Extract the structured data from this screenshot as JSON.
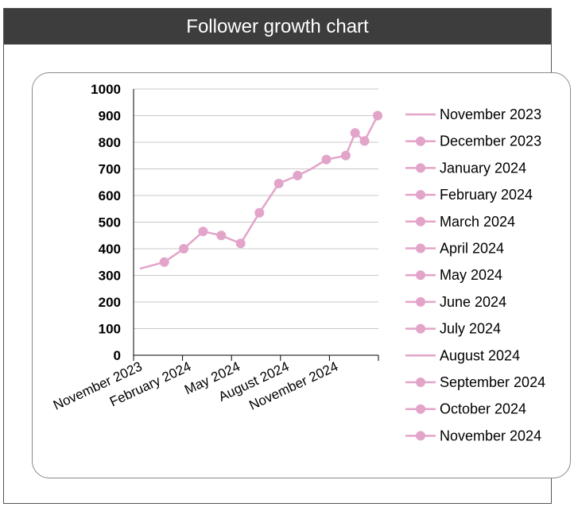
{
  "title": "Follower growth chart",
  "colors": {
    "series": "#e3a4ca",
    "header": "#3d3d3d",
    "grid": "#c8c8c8"
  },
  "chart_data": {
    "type": "line",
    "title": "Follower growth chart",
    "x": [
      "2023-11-01",
      "2023-12-01",
      "2024-01-01",
      "2024-02-01",
      "2024-03-01",
      "2024-04-01",
      "2024-05-01",
      "2024-06-01",
      "2024-07-01",
      "2024-08-01",
      "2024-09-01",
      "2024-10-01",
      "2024-11-01"
    ],
    "series": [
      {
        "points": [
          {
            "x": "2023-11-01",
            "y": 325
          },
          {
            "x": "2023-12-10",
            "y": 350
          },
          {
            "x": "2024-01-10",
            "y": 400
          },
          {
            "x": "2024-02-10",
            "y": 465
          },
          {
            "x": "2024-03-10",
            "y": 450
          },
          {
            "x": "2024-04-10",
            "y": 420
          },
          {
            "x": "2024-05-10",
            "y": 535
          },
          {
            "x": "2024-06-10",
            "y": 645
          },
          {
            "x": "2024-07-10",
            "y": 675
          },
          {
            "x": "2024-08-01",
            "y": 700
          },
          {
            "x": "2024-08-25",
            "y": 735
          },
          {
            "x": "2024-09-25",
            "y": 750
          },
          {
            "x": "2024-10-10",
            "y": 835
          },
          {
            "x": "2024-10-25",
            "y": 805
          },
          {
            "x": "2024-11-15",
            "y": 900
          }
        ]
      }
    ],
    "x_ticks": [
      "November 2023",
      "February 2024",
      "May 2024",
      "August 2024",
      "November 2024"
    ],
    "y_ticks": [
      0,
      100,
      200,
      300,
      400,
      500,
      600,
      700,
      800,
      900,
      1000
    ],
    "ylim": [
      0,
      1000
    ],
    "grid": true,
    "legend_position": "right",
    "legend": [
      {
        "label": "November 2023",
        "marker": false
      },
      {
        "label": "December 2023",
        "marker": true
      },
      {
        "label": "January 2024",
        "marker": true
      },
      {
        "label": "February 2024",
        "marker": true
      },
      {
        "label": "March 2024",
        "marker": true
      },
      {
        "label": "April 2024",
        "marker": true
      },
      {
        "label": "May 2024",
        "marker": true
      },
      {
        "label": "June 2024",
        "marker": true
      },
      {
        "label": "July 2024",
        "marker": true
      },
      {
        "label": "August 2024",
        "marker": false
      },
      {
        "label": "September 2024",
        "marker": true
      },
      {
        "label": "October 2024",
        "marker": true
      },
      {
        "label": "November 2024",
        "marker": true
      }
    ]
  }
}
